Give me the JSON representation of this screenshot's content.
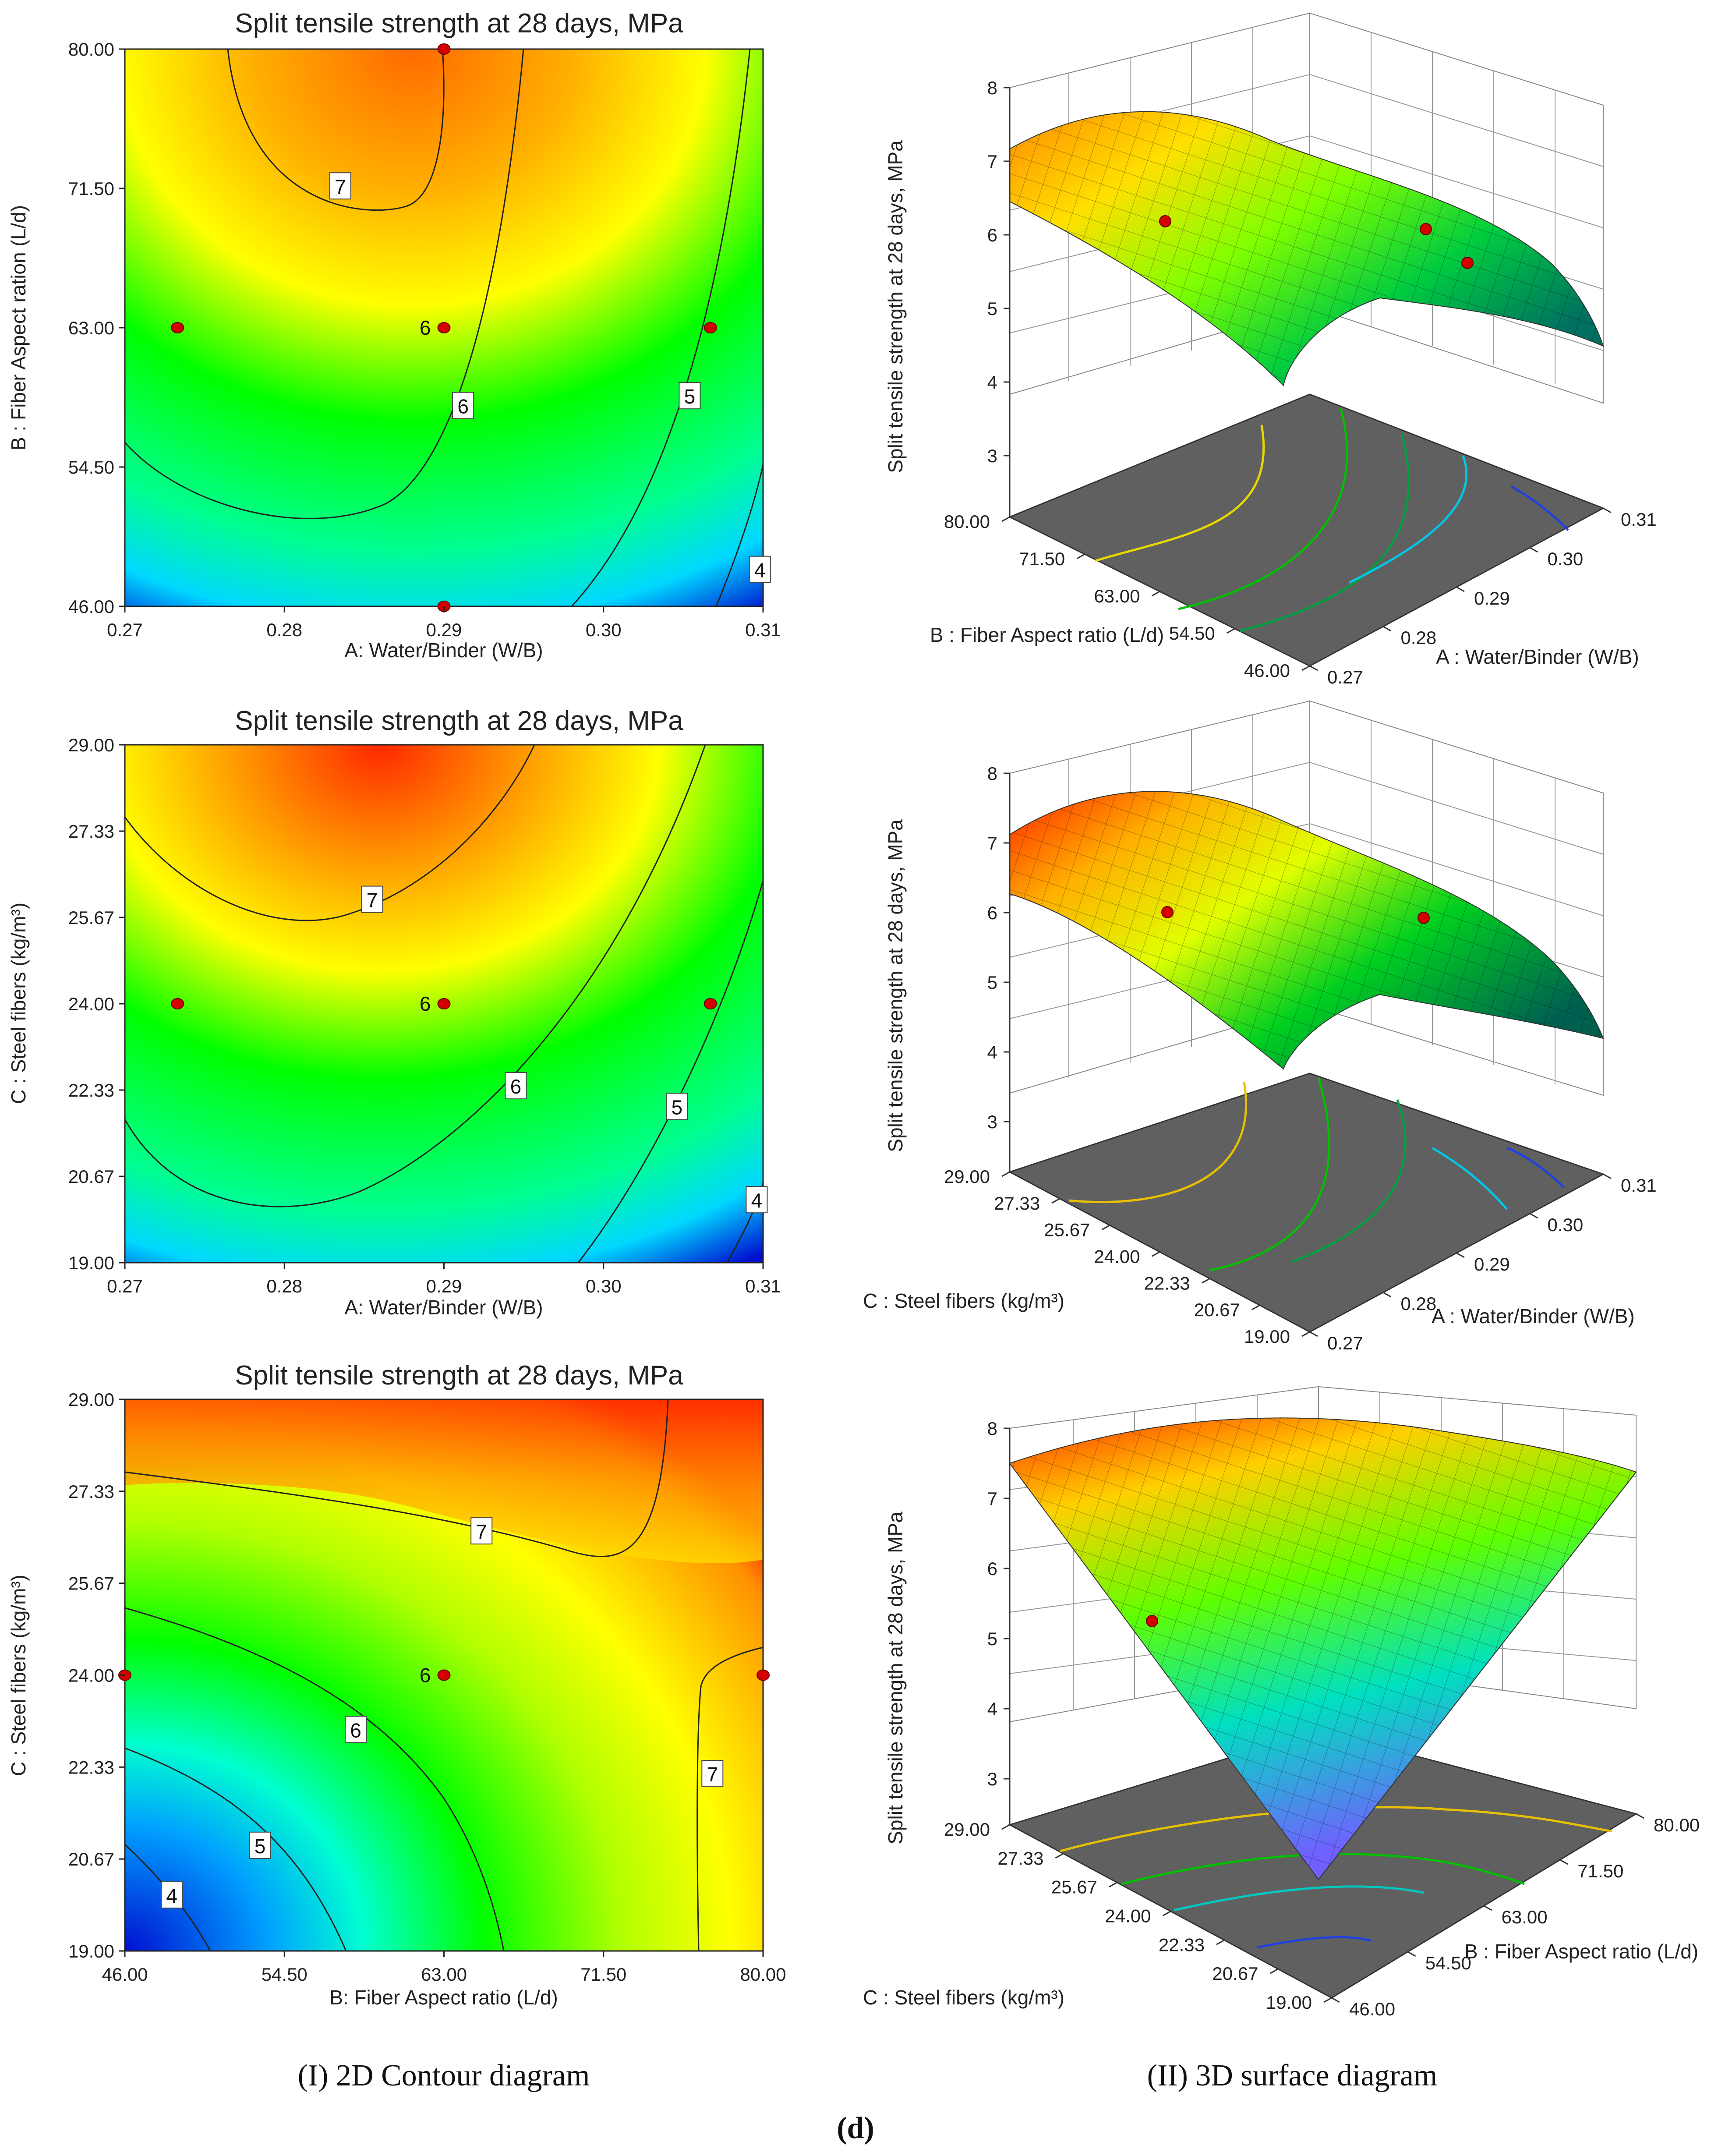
{
  "figure": {
    "caption_left": "(I) 2D Contour diagram",
    "caption_right": "(II) 3D surface diagram",
    "panel_label": "(d)"
  },
  "colors": {
    "low": "#0010d8",
    "mid_low": "#00e8ff",
    "mid": "#00ff00",
    "mid_high": "#ffff00",
    "high": "#ff8000",
    "max": "#ff1000",
    "contour_line": "#222222",
    "design_point": "#d40000",
    "floor": "#606060"
  },
  "chart_data": [
    {
      "id": "contour_AB",
      "type": "contour",
      "title": "Split tensile strength at 28 days, MPa",
      "xlabel": "A: Water/Binder (W/B)",
      "ylabel": "B : Fiber Aspect ration (L/d)",
      "xlim": [
        0.27,
        0.31
      ],
      "ylim": [
        46.0,
        80.0
      ],
      "xticks": [
        "0.27",
        "0.28",
        "0.29",
        "0.30",
        "0.31"
      ],
      "yticks": [
        "46.00",
        "54.50",
        "63.00",
        "71.50",
        "80.00"
      ],
      "contour_levels": [
        4,
        5,
        6,
        7
      ],
      "contour_labels": [
        {
          "text": "7",
          "x": 0.2835,
          "y": 71.6
        },
        {
          "text": "6",
          "x": 0.2912,
          "y": 58.2
        },
        {
          "text": "5",
          "x": 0.3054,
          "y": 58.8
        },
        {
          "text": "4",
          "x": 0.3098,
          "y": 48.2
        }
      ],
      "design_points": [
        {
          "x": 0.29,
          "y": 80.0
        },
        {
          "x": 0.2733,
          "y": 63.0
        },
        {
          "x": 0.29,
          "y": 63.0
        },
        {
          "x": 0.3067,
          "y": 63.0
        },
        {
          "x": 0.29,
          "y": 46.0
        }
      ],
      "center_point_count": "6"
    },
    {
      "id": "contour_AC",
      "type": "contour",
      "title": "Split tensile strength at 28 days, MPa",
      "xlabel": "A: Water/Binder (W/B)",
      "ylabel": "C : Steel fibers (kg/m³)",
      "xlim": [
        0.27,
        0.31
      ],
      "ylim": [
        19.0,
        29.0
      ],
      "xticks": [
        "0.27",
        "0.28",
        "0.29",
        "0.30",
        "0.31"
      ],
      "yticks": [
        "19.00",
        "20.67",
        "22.33",
        "24.00",
        "25.67",
        "27.33",
        "29.00"
      ],
      "contour_levels": [
        4,
        5,
        6,
        7
      ],
      "contour_labels": [
        {
          "text": "7",
          "x": 0.2855,
          "y": 26.0
        },
        {
          "text": "6",
          "x": 0.2945,
          "y": 22.4
        },
        {
          "text": "5",
          "x": 0.3046,
          "y": 22.0
        },
        {
          "text": "4",
          "x": 0.3096,
          "y": 20.2
        }
      ],
      "design_points": [
        {
          "x": 0.2733,
          "y": 24.0
        },
        {
          "x": 0.29,
          "y": 24.0
        },
        {
          "x": 0.3067,
          "y": 24.0
        }
      ],
      "center_point_count": "6"
    },
    {
      "id": "contour_BC",
      "type": "contour",
      "title": "Split tensile strength at 28 days, MPa",
      "xlabel": "B: Fiber Aspect ratio (L/d)",
      "ylabel": "C : Steel fibers (kg/m³)",
      "xlim": [
        46.0,
        80.0
      ],
      "ylim": [
        19.0,
        29.0
      ],
      "xticks": [
        "46.00",
        "54.50",
        "63.00",
        "71.50",
        "80.00"
      ],
      "yticks": [
        "19.00",
        "20.67",
        "22.33",
        "24.00",
        "25.67",
        "27.33",
        "29.00"
      ],
      "contour_levels": [
        4,
        5,
        6,
        7
      ],
      "contour_labels": [
        {
          "text": "7",
          "x": 65.0,
          "y": 26.6
        },
        {
          "text": "6",
          "x": 58.3,
          "y": 23.0
        },
        {
          "text": "5",
          "x": 53.2,
          "y": 20.9
        },
        {
          "text": "4",
          "x": 48.5,
          "y": 20.0
        },
        {
          "text": "7",
          "x": 77.3,
          "y": 22.2
        }
      ],
      "design_points": [
        {
          "x": 46.0,
          "y": 24.0
        },
        {
          "x": 63.0,
          "y": 24.0
        },
        {
          "x": 80.0,
          "y": 24.0
        }
      ],
      "center_point_count": "6"
    },
    {
      "id": "surface_AB",
      "type": "surface3d",
      "zlabel": "Split tensile strength at 28 days, MPa",
      "zticks": [
        "3",
        "4",
        "5",
        "6",
        "7",
        "8"
      ],
      "zlim": [
        3,
        8
      ],
      "left_axis_label": "B : Fiber Aspect ratio (L/d)",
      "left_ticks": [
        "80.00",
        "71.50",
        "63.00",
        "54.50",
        "46.00"
      ],
      "right_axis_label": "A : Water/Binder (W/B)",
      "right_ticks": [
        "0.27",
        "0.28",
        "0.29",
        "0.30",
        "0.31"
      ]
    },
    {
      "id": "surface_AC",
      "type": "surface3d",
      "zlabel": "Split tensile strength at 28 days, MPa",
      "zticks": [
        "3",
        "4",
        "5",
        "6",
        "7",
        "8"
      ],
      "zlim": [
        3,
        8
      ],
      "left_axis_label": "C : Steel fibers (kg/m³)",
      "left_ticks": [
        "29.00",
        "27.33",
        "25.67",
        "24.00",
        "22.33",
        "20.67",
        "19.00"
      ],
      "right_axis_label": "A : Water/Binder (W/B)",
      "right_ticks": [
        "0.27",
        "0.28",
        "0.29",
        "0.30",
        "0.31"
      ]
    },
    {
      "id": "surface_BC",
      "type": "surface3d",
      "zlabel": "Split tensile strength at 28 days, MPa",
      "zticks": [
        "3",
        "4",
        "5",
        "6",
        "7",
        "8"
      ],
      "zlim": [
        3,
        8
      ],
      "left_axis_label": "C : Steel fibers (kg/m³)",
      "left_ticks": [
        "29.00",
        "27.33",
        "25.67",
        "24.00",
        "22.33",
        "20.67",
        "19.00"
      ],
      "right_axis_label": "B : Fiber Aspect ratio (L/d)",
      "right_ticks": [
        "46.00",
        "54.50",
        "63.00",
        "71.50",
        "80.00"
      ]
    }
  ]
}
